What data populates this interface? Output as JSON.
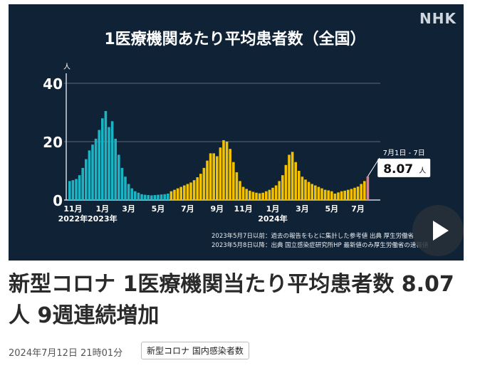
{
  "article": {
    "headline": "新型コロナ 1医療機関当たり平均患者数 8.07人 9週連続増加",
    "date": "2024年7月12日 21時01分",
    "tag": "新型コロナ 国内感染者数"
  },
  "hero": {
    "logo": "NHK",
    "play_icon": "play-icon"
  },
  "chart_data": {
    "type": "bar",
    "title": "1医療機関あたり平均患者数（全国）",
    "unit_label": "人",
    "ylim": [
      0,
      40
    ],
    "yticks": [
      "0",
      "20",
      "40"
    ],
    "grid": true,
    "x_tick_labels": [
      {
        "label": "11月",
        "week": 1
      },
      {
        "label": "1月",
        "week": 10
      },
      {
        "label": "3月",
        "week": 18
      },
      {
        "label": "5月",
        "week": 27
      },
      {
        "label": "7月",
        "week": 36
      },
      {
        "label": "9月",
        "week": 45
      },
      {
        "label": "11月",
        "week": 53
      },
      {
        "label": "1月",
        "week": 62
      },
      {
        "label": "3月",
        "week": 71
      },
      {
        "label": "5月",
        "week": 80
      },
      {
        "label": "7月",
        "week": 88
      }
    ],
    "year_labels": [
      {
        "label": "2022年",
        "week": 1
      },
      {
        "label": "2023年",
        "week": 10
      },
      {
        "label": "2024年",
        "week": 62
      }
    ],
    "series": [
      {
        "color": "#1bb4c4",
        "start_week": 0,
        "values": [
          6.5,
          6.8,
          7.2,
          8.5,
          11,
          14,
          17,
          19,
          21,
          24,
          28,
          30.5,
          25,
          27,
          21,
          15.5,
          11,
          8,
          5.5,
          4,
          3,
          2.5,
          2,
          1.8,
          1.7,
          1.6,
          1.7,
          1.8,
          1.9,
          2,
          2.2
        ]
      },
      {
        "color": "#f2c100",
        "start_week": 31,
        "values": [
          3,
          3.5,
          4,
          4.5,
          5,
          5.5,
          6,
          6.8,
          7.8,
          9,
          11,
          13.5,
          16,
          16,
          15,
          18,
          20.5,
          20,
          17.5,
          13,
          9.5,
          6.5,
          4.5,
          3.8,
          3.2,
          2.8,
          2.5,
          2.3,
          2.5,
          3,
          3.5,
          4.2,
          5,
          6.5,
          8.5,
          12,
          15.5,
          16.5,
          13,
          10,
          8,
          7,
          6.2,
          5.5,
          5,
          4.5,
          4,
          3.5,
          3.3,
          3,
          2.2,
          2.6,
          3,
          3.2,
          3.5,
          3.8,
          4.2,
          4.6,
          5.5,
          6.5
        ]
      },
      {
        "color": "#e07c8c",
        "start_week": 91,
        "values": [
          8.07
        ]
      }
    ],
    "callout": {
      "period": "7月1日 - 7日",
      "value": "8.07",
      "unit": "人"
    },
    "sources": [
      "2023年5月7日以前：過去の報告をもとに集計した参考値 出典 厚生労働省",
      "2023年5月8日以降：出典 国立感染症研究所HP 最新値のみ厚生労働省の速報値"
    ]
  }
}
